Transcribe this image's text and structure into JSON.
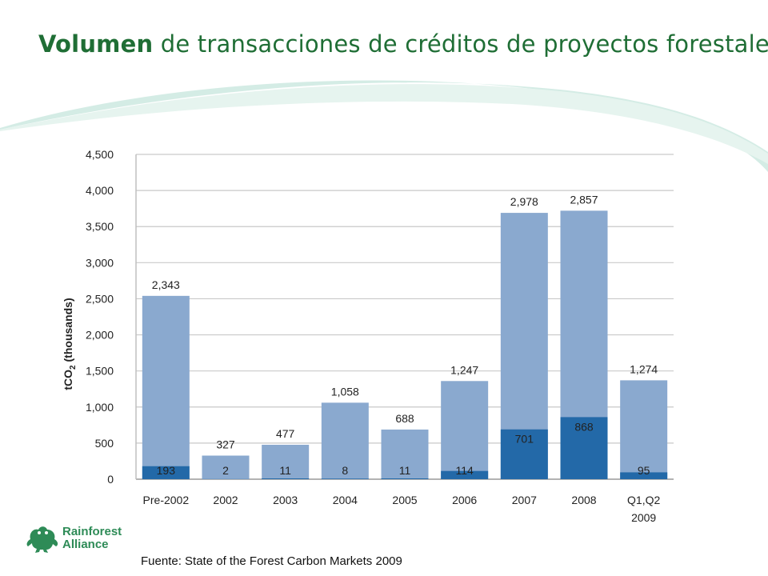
{
  "slide": {
    "title_bold": "Volumen",
    "title_rest": " de transacciones de créditos de proyectos forestales",
    "source": "Fuente: State of the Forest Carbon Markets 2009",
    "logo_text": "Rainforest Alliance",
    "colors": {
      "title": "#1f6e35",
      "total_bar": "#8aa9cf",
      "inner_bar": "#2369a8",
      "grid": "#c9c9c9",
      "swoosh": "#cde9e1"
    }
  },
  "chart_data": {
    "type": "bar",
    "stacked": true,
    "ylabel_main": "tCO",
    "ylabel_sub": "2",
    "ylabel_rest": " (thousands)",
    "ylim": [
      0,
      4500
    ],
    "yticks": [
      0,
      500,
      1000,
      1500,
      2000,
      2500,
      3000,
      3500,
      4000,
      4500
    ],
    "ytick_labels": [
      "0",
      "500",
      "1,000",
      "1,500",
      "2,000",
      "2,500",
      "3,000",
      "3,500",
      "4,000",
      "4,500"
    ],
    "grid": true,
    "categories": [
      "Pre-2002",
      "2002",
      "2003",
      "2004",
      "2005",
      "2006",
      "2007",
      "2008",
      "Q1,Q2\n2009"
    ],
    "series": [
      {
        "values": [
          193,
          2,
          11,
          8,
          11,
          114,
          701,
          868,
          95
        ],
        "labels": [
          "193",
          "2",
          "11",
          "8",
          "11",
          "114",
          "701",
          "868",
          "95"
        ],
        "bar_heights": [
          180,
          2,
          11,
          8,
          11,
          114,
          690,
          860,
          95
        ]
      },
      {
        "values": [
          2343,
          327,
          477,
          1058,
          688,
          1247,
          2978,
          2857,
          1274
        ],
        "labels": [
          "2,343",
          "327",
          "477",
          "1,058",
          "688",
          "1,247",
          "2,978",
          "2,857",
          "1,274"
        ],
        "bar_heights": [
          2540,
          327,
          477,
          1060,
          688,
          1360,
          3690,
          3720,
          1370
        ]
      }
    ]
  }
}
